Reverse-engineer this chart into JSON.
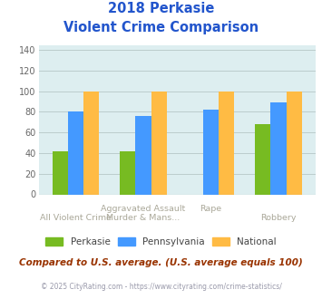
{
  "title_line1": "2018 Perkasie",
  "title_line2": "Violent Crime Comparison",
  "cat_labels_top": [
    "",
    "Aggravated Assault",
    "Rape",
    ""
  ],
  "cat_labels_bottom": [
    "All Violent Crime",
    "Murder & Mans...",
    "",
    "Robbery"
  ],
  "series": {
    "Perkasie": [
      42,
      42,
      0,
      68
    ],
    "Pennsylvania": [
      80,
      76,
      82,
      89
    ],
    "National": [
      100,
      100,
      100,
      100
    ]
  },
  "colors": {
    "Perkasie": "#77bb22",
    "Pennsylvania": "#4499ff",
    "National": "#ffbb44"
  },
  "ylim": [
    0,
    145
  ],
  "yticks": [
    0,
    20,
    40,
    60,
    80,
    100,
    120,
    140
  ],
  "grid_color": "#bbcccc",
  "plot_bg": "#ddeef0",
  "title_color": "#2255cc",
  "label_color": "#aaa899",
  "footer_text": "Compared to U.S. average. (U.S. average equals 100)",
  "footer_color": "#993300",
  "copyright_text": "© 2025 CityRating.com - https://www.cityrating.com/crime-statistics/",
  "copyright_color": "#9999aa",
  "legend_text_color": "#444444"
}
